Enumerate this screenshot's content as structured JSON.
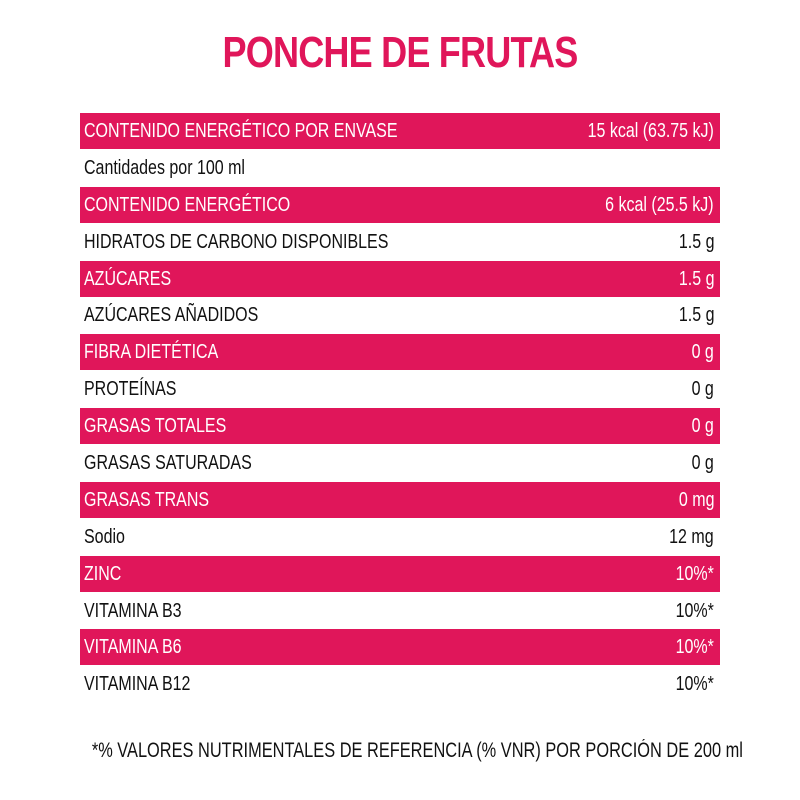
{
  "title": "PONCHE DE FRUTAS",
  "colors": {
    "accent": "#e0165a",
    "text": "#111111",
    "highlight_text": "#ffffff",
    "background": "#ffffff"
  },
  "rows": [
    {
      "label": "CONTENIDO ENERGÉTICO POR ENVASE",
      "value": "15 kcal (63.75 kJ)",
      "highlight": true
    },
    {
      "label": "Cantidades por 100 ml",
      "value": "",
      "highlight": false
    },
    {
      "label": "CONTENIDO ENERGÉTICO",
      "value": "6 kcal (25.5 kJ)",
      "highlight": true
    },
    {
      "label": "HIDRATOS DE CARBONO DISPONIBLES",
      "value": "1.5 g",
      "highlight": false
    },
    {
      "label": "AZÚCARES",
      "value": "1.5 g",
      "highlight": true
    },
    {
      "label": "AZÚCARES AÑADIDOS",
      "value": "1.5 g",
      "highlight": false
    },
    {
      "label": "FIBRA DIETÉTICA",
      "value": "0 g",
      "highlight": true
    },
    {
      "label": "PROTEÍNAS",
      "value": "0 g",
      "highlight": false
    },
    {
      "label": "GRASAS TOTALES",
      "value": "0 g",
      "highlight": true
    },
    {
      "label": "GRASAS SATURADAS",
      "value": "0 g",
      "highlight": false
    },
    {
      "label": "GRASAS TRANS",
      "value": "0 mg",
      "highlight": true
    },
    {
      "label": "Sodio",
      "value": "12 mg",
      "highlight": false
    },
    {
      "label": "ZINC",
      "value": "10%*",
      "highlight": true
    },
    {
      "label": "VITAMINA B3",
      "value": "10%*",
      "highlight": false
    },
    {
      "label": "VITAMINA B6",
      "value": "10%*",
      "highlight": true
    },
    {
      "label": "VITAMINA B12",
      "value": "10%*",
      "highlight": false
    }
  ],
  "footnote": "*% VALORES NUTRIMENTALES DE REFERENCIA (% VNR) POR PORCIÓN DE 200 ml"
}
